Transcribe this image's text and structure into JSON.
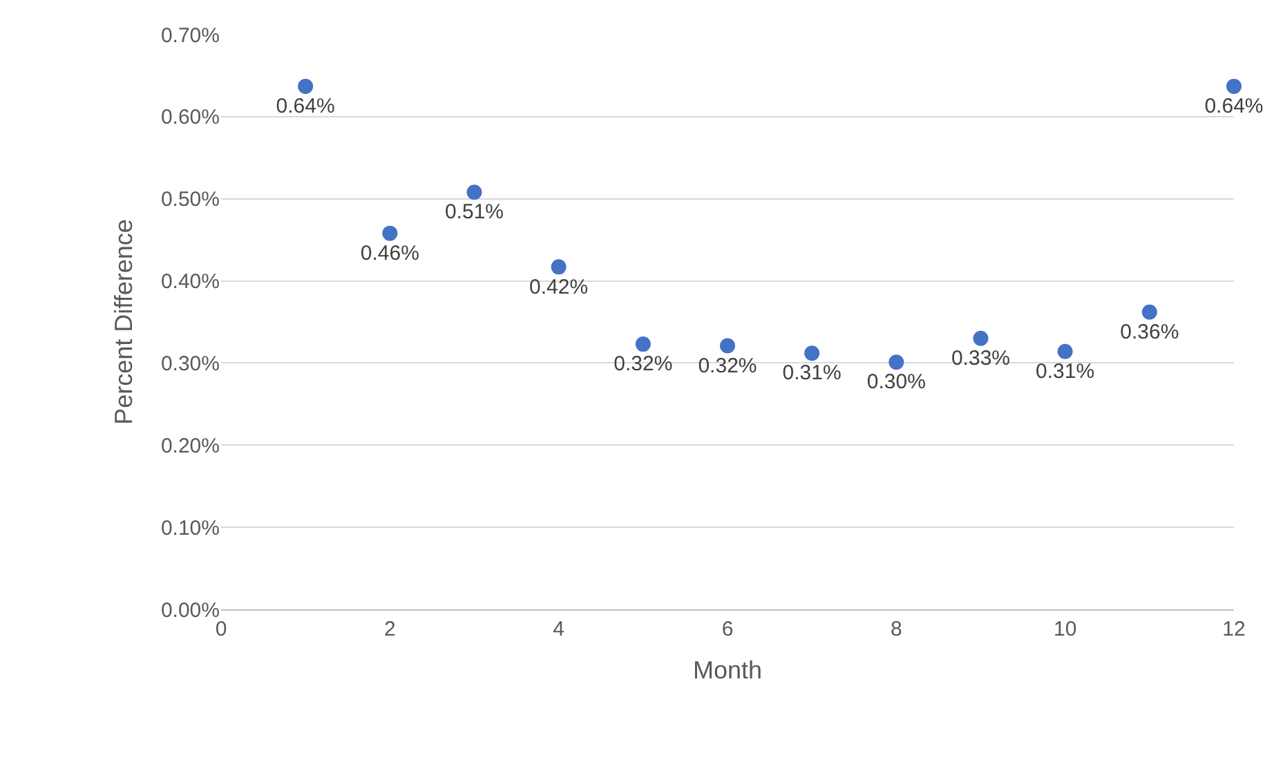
{
  "chart_data": {
    "type": "scatter",
    "xlabel": "Month",
    "ylabel": "Percent Difference",
    "x": [
      1,
      2,
      3,
      4,
      5,
      6,
      7,
      8,
      9,
      10,
      11,
      12
    ],
    "series": [
      {
        "color": "#4472c4",
        "values": [
          0.637,
          0.458,
          0.508,
          0.417,
          0.323,
          0.321,
          0.312,
          0.301,
          0.33,
          0.314,
          0.362,
          0.637
        ],
        "value_labels": [
          "0.64%",
          "0.46%",
          "0.51%",
          "0.42%",
          "0.32%",
          "0.32%",
          "0.31%",
          "0.30%",
          "0.33%",
          "0.31%",
          "0.36%",
          "0.64%"
        ]
      }
    ],
    "xlim": [
      0,
      12
    ],
    "xticks": [
      0,
      2,
      4,
      6,
      8,
      10,
      12
    ],
    "ylim": [
      0,
      0.7
    ],
    "yticks": [
      {
        "value": 0,
        "label": "0.00%"
      },
      {
        "value": 0.1,
        "label": "0.10%"
      },
      {
        "value": 0.2,
        "label": "0.20%"
      },
      {
        "value": 0.3,
        "label": "0.30%"
      },
      {
        "value": 0.4,
        "label": "0.40%"
      },
      {
        "value": 0.5,
        "label": "0.50%"
      },
      {
        "value": 0.6,
        "label": "0.60%"
      },
      {
        "value": 0.7,
        "label": "0.70%"
      }
    ],
    "grid": "y",
    "marker": "circle"
  }
}
